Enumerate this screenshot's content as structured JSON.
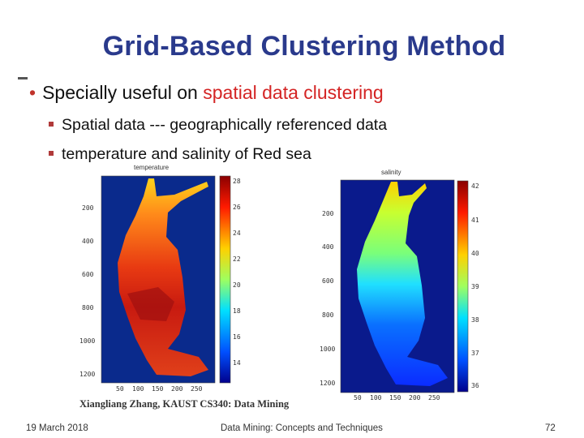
{
  "slide": {
    "title": "Grid-Based Clustering Method",
    "bullet1_prefix": "Specially useful on ",
    "bullet1_highlight": "spatial data clustering",
    "sub_bullets": [
      "Spatial data --- geographically referenced data",
      "temperature and salinity of Red sea"
    ],
    "credit": "Xiangliang Zhang, KAUST CS340: Data Mining",
    "colors": {
      "title": "#2a3a8c",
      "highlight": "#d42424",
      "bullet": "#c0332b"
    }
  },
  "figures": {
    "temperature": {
      "caption": "temperature",
      "y_ticks": [
        "200",
        "400",
        "600",
        "800",
        "1000",
        "1200"
      ],
      "x_ticks": [
        "50",
        "100",
        "150",
        "200",
        "250"
      ],
      "colorbar_ticks": [
        "28",
        "26",
        "24",
        "22",
        "20",
        "18",
        "16",
        "14"
      ]
    },
    "salinity": {
      "caption": "salinity",
      "y_ticks": [
        "200",
        "400",
        "600",
        "800",
        "1000",
        "1200"
      ],
      "x_ticks": [
        "50",
        "100",
        "150",
        "200",
        "250"
      ],
      "colorbar_ticks": [
        "42",
        "41",
        "40",
        "39",
        "38",
        "37",
        "36"
      ]
    }
  },
  "footer": {
    "date": "19 March 2018",
    "center": "Data Mining: Concepts and Techniques",
    "page": "72"
  }
}
